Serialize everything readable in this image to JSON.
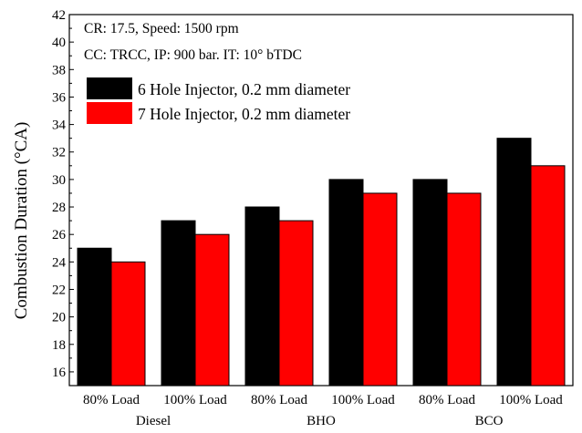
{
  "chart_data": {
    "type": "bar",
    "ylabel": "Combustion Duration (°CA)",
    "xlabel": "",
    "ylim": [
      15,
      42
    ],
    "yticks": [
      16,
      18,
      20,
      22,
      24,
      26,
      28,
      30,
      32,
      34,
      36,
      38,
      40,
      42
    ],
    "categories": [
      "80% Load",
      "100% Load",
      "80% Load",
      "100% Load",
      "80% Load",
      "100% Load"
    ],
    "groups": [
      {
        "label": "Diesel",
        "categories": [
          0,
          1
        ]
      },
      {
        "label": "BHO",
        "categories": [
          2,
          3
        ]
      },
      {
        "label": "BCO",
        "categories": [
          4,
          5
        ]
      }
    ],
    "series": [
      {
        "name": "6 Hole Injector, 0.2 mm diameter",
        "color": "#000000",
        "values": [
          25,
          27,
          28,
          30,
          30,
          33
        ]
      },
      {
        "name": "7 Hole Injector, 0.2 mm diameter",
        "color": "#ff0000",
        "values": [
          24,
          26,
          27,
          29,
          29,
          31
        ]
      }
    ],
    "annotations": [
      "CR: 17.5, Speed: 1500 rpm",
      "CC: TRCC, IP: 900 bar. IT: 10° bTDC"
    ],
    "legend_position": "top-left",
    "grid": false
  }
}
